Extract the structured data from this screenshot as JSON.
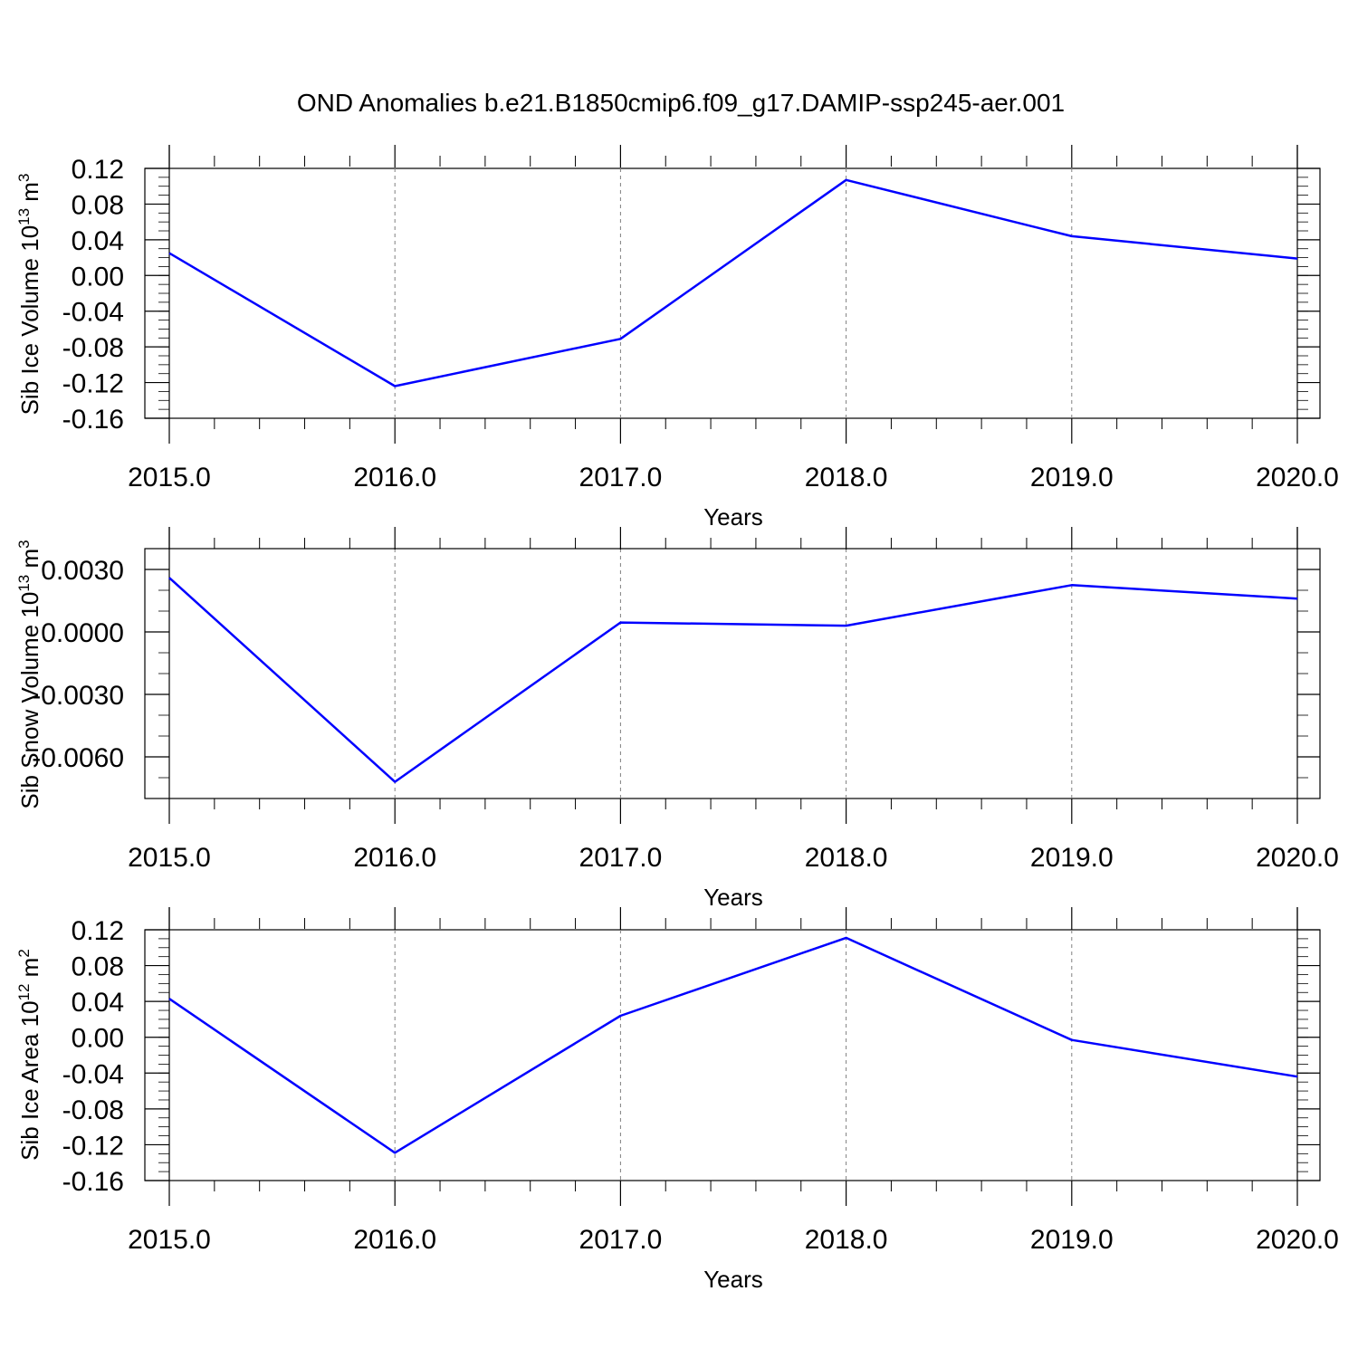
{
  "title": "OND Anomalies b.e21.B1850cmip6.f09_g17.DAMIP-ssp245-aer.001",
  "colors": {
    "line": "#0000ff",
    "axis": "#000000",
    "grid": "#808080"
  },
  "chart_data": [
    {
      "type": "line",
      "ylabel": {
        "text": "Sib Ice Volume 10",
        "sup1": "13",
        "unit": " m",
        "sup2": "3"
      },
      "xlabel": "Years",
      "x": [
        2015,
        2016,
        2017,
        2018,
        2019,
        2020
      ],
      "x_tick_labels": [
        "2015.0",
        "2016.0",
        "2017.0",
        "2018.0",
        "2019.0",
        "2020.0"
      ],
      "series": [
        {
          "values": [
            0.025,
            -0.124,
            -0.071,
            0.107,
            0.044,
            0.019
          ]
        }
      ],
      "y_ticks": [
        0.12,
        0.08,
        0.04,
        0.0,
        -0.04,
        -0.08,
        -0.12,
        -0.16
      ],
      "y_tick_labels": [
        "0.12",
        "0.08",
        "0.04",
        "0.00",
        "-0.04",
        "-0.08",
        "-0.12",
        "-0.16"
      ],
      "xlim": [
        2015,
        2020
      ],
      "ylim": [
        -0.16,
        0.12
      ],
      "grid": "vertical-dashed"
    },
    {
      "type": "line",
      "ylabel": {
        "text": "Sib Snow Volume 10",
        "sup1": "13",
        "unit": " m",
        "sup2": "3"
      },
      "xlabel": "Years",
      "x": [
        2015,
        2016,
        2017,
        2018,
        2019,
        2020
      ],
      "x_tick_labels": [
        "2015.0",
        "2016.0",
        "2017.0",
        "2018.0",
        "2019.0",
        "2020.0"
      ],
      "series": [
        {
          "values": [
            0.0026,
            -0.0072,
            0.00045,
            0.0003,
            0.00225,
            0.0016
          ]
        }
      ],
      "y_ticks": [
        0.003,
        0.0,
        -0.003,
        -0.006
      ],
      "y_tick_labels": [
        "0.0030",
        "0.0000",
        "-0.0030",
        "-0.0060"
      ],
      "xlim": [
        2015,
        2020
      ],
      "ylim": [
        -0.008,
        0.004
      ],
      "grid": "vertical-dashed"
    },
    {
      "type": "line",
      "ylabel": {
        "text": "Sib Ice Area 10",
        "sup1": "12",
        "unit": " m",
        "sup2": "2"
      },
      "xlabel": "Years",
      "x": [
        2015,
        2016,
        2017,
        2018,
        2019,
        2020
      ],
      "x_tick_labels": [
        "2015.0",
        "2016.0",
        "2017.0",
        "2018.0",
        "2019.0",
        "2020.0"
      ],
      "series": [
        {
          "values": [
            0.043,
            -0.129,
            0.024,
            0.111,
            -0.003,
            -0.044
          ]
        }
      ],
      "y_ticks": [
        0.12,
        0.08,
        0.04,
        0.0,
        -0.04,
        -0.08,
        -0.12,
        -0.16
      ],
      "y_tick_labels": [
        "0.12",
        "0.08",
        "0.04",
        "0.00",
        "-0.04",
        "-0.08",
        "-0.12",
        "-0.16"
      ],
      "xlim": [
        2015,
        2020
      ],
      "ylim": [
        -0.16,
        0.12
      ],
      "grid": "vertical-dashed"
    }
  ]
}
